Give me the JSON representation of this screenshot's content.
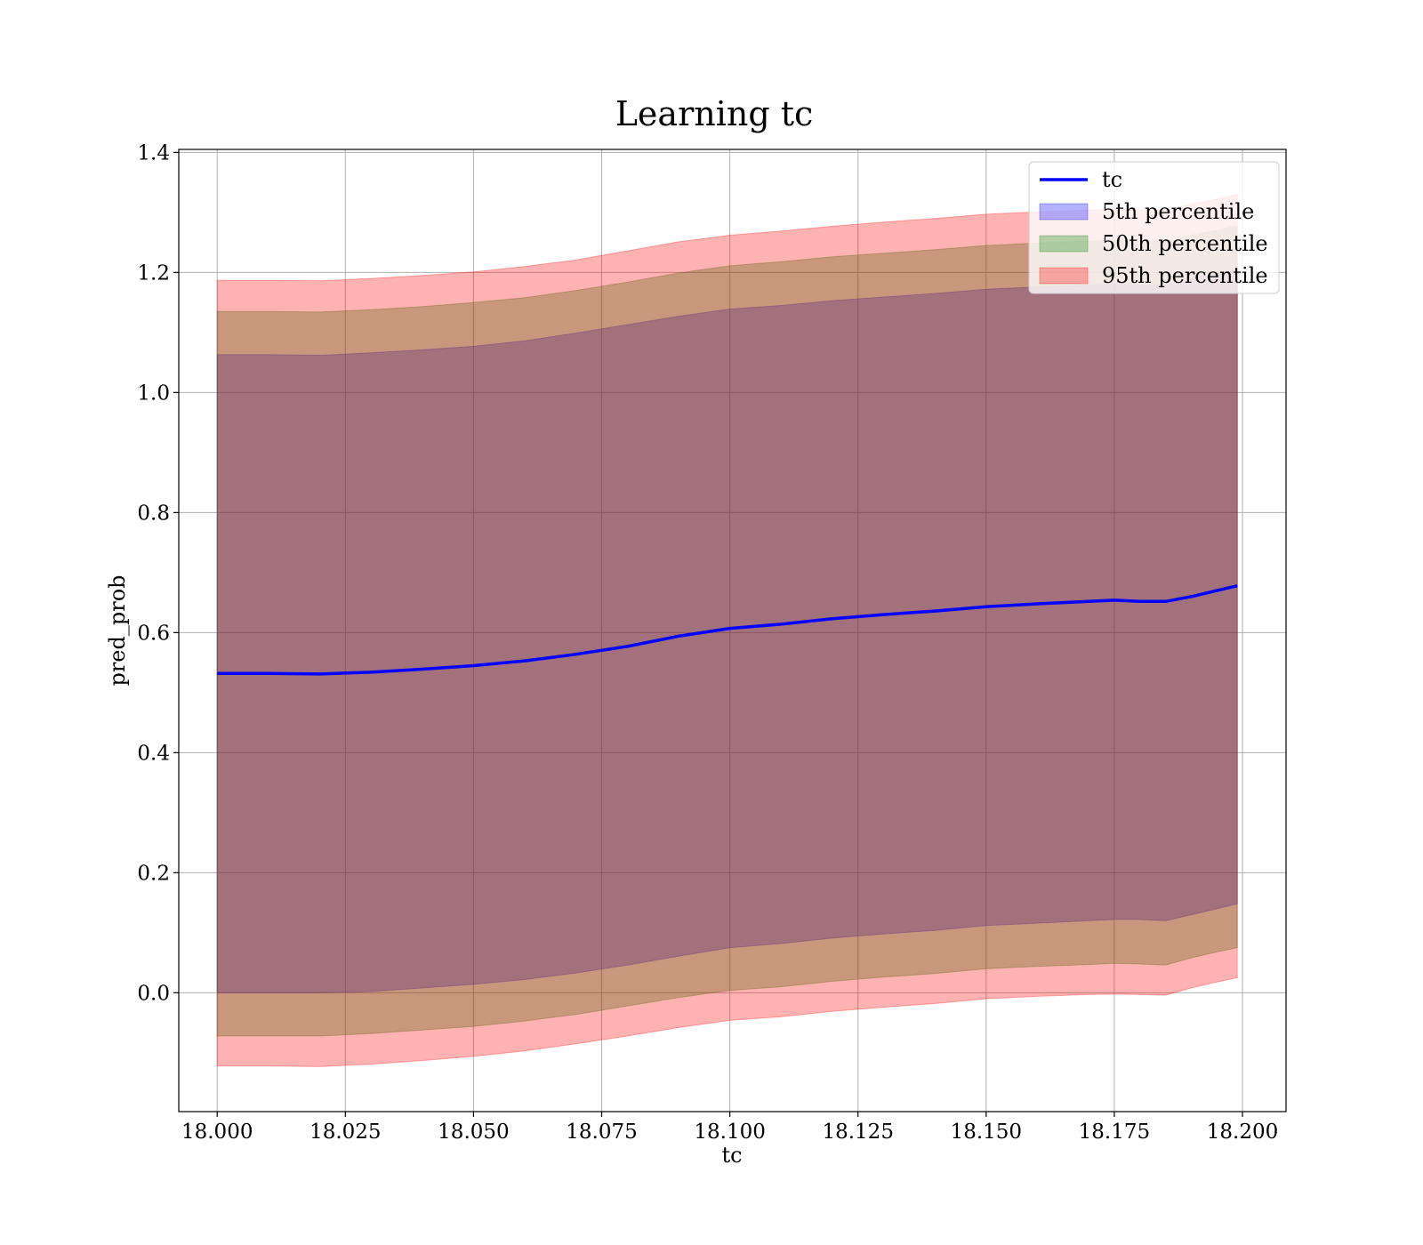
{
  "chart_data": {
    "type": "area",
    "title": "Learning tc",
    "xlabel": "tc",
    "ylabel": "pred_prob",
    "xlim": [
      17.9925,
      18.2085
    ],
    "ylim": [
      -0.198,
      1.405
    ],
    "xticks": [
      18.0,
      18.025,
      18.05,
      18.075,
      18.1,
      18.125,
      18.15,
      18.175,
      18.2
    ],
    "xtick_labels": [
      "18.000",
      "18.025",
      "18.050",
      "18.075",
      "18.100",
      "18.125",
      "18.150",
      "18.175",
      "18.200"
    ],
    "yticks": [
      0.0,
      0.2,
      0.4,
      0.6,
      0.8,
      1.0,
      1.2,
      1.4
    ],
    "ytick_labels": [
      "0.0",
      "0.2",
      "0.4",
      "0.6",
      "0.8",
      "1.0",
      "1.2",
      "1.4"
    ],
    "grid": true,
    "legend_position": "top-right",
    "legend": [
      {
        "label": "tc",
        "kind": "line",
        "color": "#0000ff"
      },
      {
        "label": "5th percentile",
        "kind": "patch",
        "color": "#0000ff"
      },
      {
        "label": "50th percentile",
        "kind": "patch",
        "color": "#008000"
      },
      {
        "label": "95th percentile",
        "kind": "patch",
        "color": "#ff0000"
      }
    ],
    "x": [
      18.0,
      18.01,
      18.02,
      18.03,
      18.04,
      18.05,
      18.06,
      18.07,
      18.08,
      18.09,
      18.1,
      18.11,
      18.12,
      18.13,
      18.14,
      18.15,
      18.16,
      18.17,
      18.175,
      18.18,
      18.185,
      18.19,
      18.195,
      18.199
    ],
    "series": [
      {
        "name": "tc",
        "kind": "line",
        "color": "#0000ff",
        "values": [
          0.532,
          0.532,
          0.531,
          0.534,
          0.539,
          0.545,
          0.553,
          0.564,
          0.577,
          0.594,
          0.607,
          0.614,
          0.623,
          0.63,
          0.636,
          0.643,
          0.648,
          0.652,
          0.654,
          0.652,
          0.652,
          0.66,
          0.67,
          0.678
        ]
      },
      {
        "name": "5th percentile",
        "kind": "band",
        "color": "#0000ff",
        "opacity": 0.3,
        "lower": [
          0.0,
          0.0,
          0.0,
          0.002,
          0.008,
          0.014,
          0.022,
          0.033,
          0.046,
          0.061,
          0.075,
          0.082,
          0.091,
          0.098,
          0.104,
          0.112,
          0.116,
          0.12,
          0.122,
          0.122,
          0.12,
          0.13,
          0.14,
          0.148
        ],
        "upper": [
          1.063,
          1.063,
          1.062,
          1.066,
          1.071,
          1.077,
          1.086,
          1.099,
          1.113,
          1.127,
          1.139,
          1.145,
          1.153,
          1.159,
          1.165,
          1.172,
          1.176,
          1.179,
          1.181,
          1.179,
          1.179,
          1.19,
          1.198,
          1.205
        ]
      },
      {
        "name": "50th percentile",
        "kind": "band",
        "color": "#008000",
        "opacity": 0.3,
        "lower": [
          -0.072,
          -0.072,
          -0.072,
          -0.068,
          -0.062,
          -0.056,
          -0.047,
          -0.036,
          -0.022,
          -0.008,
          0.004,
          0.01,
          0.019,
          0.026,
          0.032,
          0.04,
          0.044,
          0.047,
          0.049,
          0.048,
          0.046,
          0.058,
          0.068,
          0.075
        ],
        "upper": [
          1.135,
          1.135,
          1.134,
          1.138,
          1.143,
          1.15,
          1.158,
          1.17,
          1.184,
          1.199,
          1.211,
          1.218,
          1.226,
          1.232,
          1.238,
          1.245,
          1.249,
          1.252,
          1.254,
          1.252,
          1.252,
          1.262,
          1.27,
          1.278
        ]
      },
      {
        "name": "95th percentile",
        "kind": "band",
        "color": "#ff0000",
        "opacity": 0.3,
        "lower": [
          -0.122,
          -0.122,
          -0.123,
          -0.119,
          -0.113,
          -0.106,
          -0.097,
          -0.085,
          -0.072,
          -0.058,
          -0.046,
          -0.04,
          -0.031,
          -0.024,
          -0.018,
          -0.01,
          -0.006,
          -0.003,
          -0.002,
          -0.003,
          -0.004,
          0.008,
          0.018,
          0.025
        ],
        "upper": [
          1.187,
          1.187,
          1.186,
          1.19,
          1.195,
          1.201,
          1.21,
          1.221,
          1.236,
          1.251,
          1.262,
          1.269,
          1.277,
          1.284,
          1.29,
          1.297,
          1.301,
          1.304,
          1.306,
          1.304,
          1.304,
          1.314,
          1.322,
          1.33
        ]
      }
    ]
  }
}
